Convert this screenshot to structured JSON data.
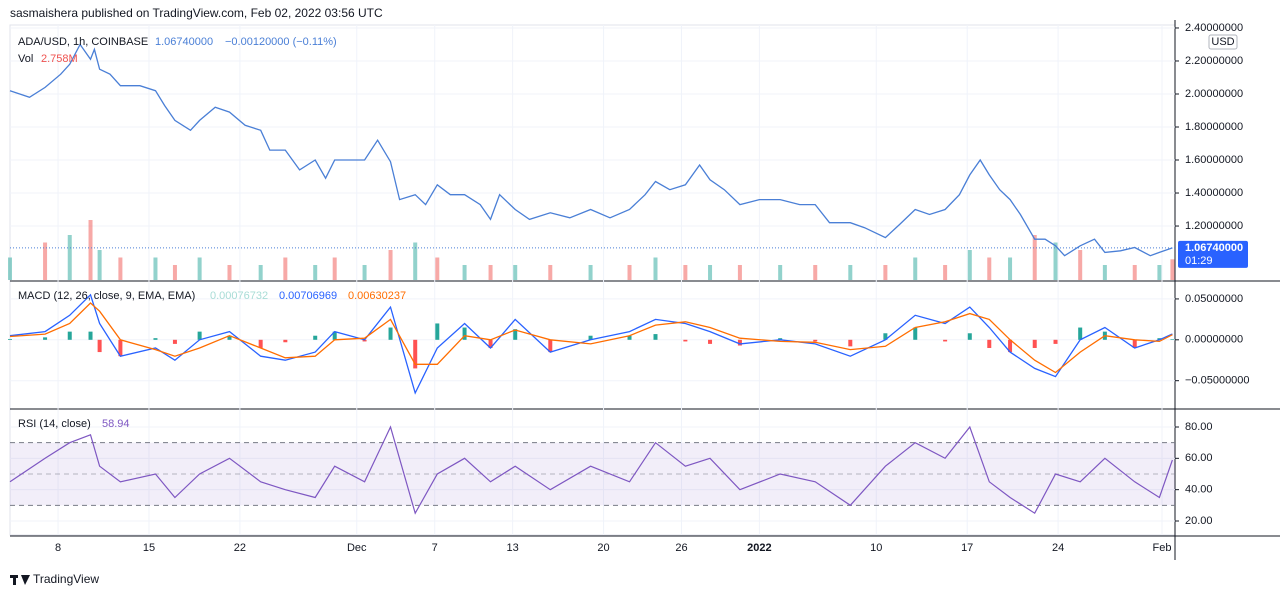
{
  "header": "sasmaishera published on TradingView.com, Feb 02, 2022 03:56 UTC",
  "footer": "TradingView",
  "chart_data": {
    "type": "line",
    "symbol": "ADA/USD, 1h, COINBASE",
    "last_price_label": "1.06740000",
    "change": "−0.00120000 (−0.11%)",
    "currency": "USD",
    "countdown": "01:29",
    "xlim": [
      -3.7,
      86
    ],
    "xticks": [
      {
        "value": 0,
        "label": "8"
      },
      {
        "value": 7,
        "label": "15"
      },
      {
        "value": 14,
        "label": "22"
      },
      {
        "value": 23,
        "label": "Dec"
      },
      {
        "value": 29,
        "label": "7"
      },
      {
        "value": 35,
        "label": "13"
      },
      {
        "value": 42,
        "label": "20"
      },
      {
        "value": 48,
        "label": "26"
      },
      {
        "value": 54,
        "label": "2022"
      },
      {
        "value": 63,
        "label": "10"
      },
      {
        "value": 70,
        "label": "17"
      },
      {
        "value": 77,
        "label": "24"
      },
      {
        "value": 85,
        "label": "Feb"
      }
    ],
    "price": {
      "color": "#4a7fd6",
      "ylim": [
        0.873,
        2.418
      ],
      "yticks": [
        {
          "value": 1.2,
          "label": "1.20000000"
        },
        {
          "value": 1.4,
          "label": "1.40000000"
        },
        {
          "value": 1.6,
          "label": "1.60000000"
        },
        {
          "value": 1.8,
          "label": "1.80000000"
        },
        {
          "value": 2.0,
          "label": "2.00000000"
        },
        {
          "value": 2.2,
          "label": "2.20000000"
        },
        {
          "value": 2.4,
          "label": "2.40000000"
        }
      ],
      "x": [
        -3.7,
        -2.2,
        -1.0,
        0.2,
        0.9,
        1.7,
        2.5,
        2.8,
        3.2,
        4.0,
        4.8,
        6.3,
        7.5,
        8.2,
        9.0,
        10.2,
        10.9,
        12.1,
        13.2,
        14.4,
        15.6,
        16.3,
        17.5,
        18.6,
        19.8,
        20.6,
        21.3,
        22.5,
        23.6,
        24.6,
        25.6,
        26.3,
        27.5,
        28.3,
        29.2,
        30.2,
        31.3,
        32.5,
        33.3,
        34.0,
        35.2,
        36.3,
        37.9,
        39.4,
        41.0,
        42.5,
        44.0,
        45.2,
        46.0,
        47.1,
        48.3,
        49.4,
        50.2,
        51.3,
        52.5,
        54.0,
        55.6,
        57.1,
        58.3,
        59.4,
        61.0,
        62.1,
        63.7,
        64.8,
        66.0,
        67.1,
        68.3,
        69.4,
        70.2,
        71.0,
        71.7,
        72.5,
        73.3,
        74.1,
        75.2,
        76.0,
        76.8,
        77.5,
        78.7,
        79.8,
        80.6,
        81.8,
        82.9,
        84.1,
        84.8,
        85.8
      ],
      "values": [
        2.02,
        1.98,
        2.04,
        2.12,
        2.18,
        2.3,
        2.21,
        2.27,
        2.15,
        2.12,
        2.05,
        2.05,
        2.02,
        1.93,
        1.84,
        1.78,
        1.84,
        1.92,
        1.89,
        1.81,
        1.78,
        1.66,
        1.66,
        1.54,
        1.6,
        1.49,
        1.6,
        1.6,
        1.6,
        1.72,
        1.59,
        1.36,
        1.39,
        1.33,
        1.45,
        1.39,
        1.39,
        1.33,
        1.24,
        1.39,
        1.3,
        1.24,
        1.28,
        1.25,
        1.3,
        1.25,
        1.3,
        1.39,
        1.47,
        1.42,
        1.45,
        1.57,
        1.48,
        1.42,
        1.33,
        1.36,
        1.36,
        1.33,
        1.33,
        1.22,
        1.22,
        1.19,
        1.13,
        1.21,
        1.3,
        1.27,
        1.3,
        1.39,
        1.51,
        1.6,
        1.51,
        1.42,
        1.36,
        1.27,
        1.12,
        1.12,
        1.08,
        1.02,
        1.08,
        1.12,
        1.04,
        1.05,
        1.07,
        1.02,
        1.04,
        1.0674
      ]
    },
    "indicator_x": [
      -3.7,
      -1.0,
      0.9,
      2.5,
      3.2,
      4.8,
      7.5,
      9.0,
      10.9,
      13.2,
      15.6,
      17.5,
      19.8,
      21.3,
      23.6,
      25.6,
      27.5,
      29.2,
      31.3,
      33.3,
      35.2,
      37.9,
      41.0,
      44.0,
      46.0,
      48.3,
      50.2,
      52.5,
      55.6,
      58.3,
      61.0,
      63.7,
      66.0,
      68.3,
      70.2,
      71.7,
      73.3,
      75.2,
      76.8,
      78.7,
      80.6,
      82.9,
      84.8,
      85.8
    ],
    "volume": {
      "name": "Vol",
      "value_label": "2.758M",
      "colors": [
        "#26a69a",
        "#ef5350"
      ],
      "values": [
        3,
        5,
        6,
        8,
        4,
        3,
        3,
        2,
        3,
        2,
        2,
        3,
        2,
        3,
        2,
        4,
        5,
        3,
        2,
        2,
        2,
        2,
        2,
        2,
        3,
        2,
        2,
        2,
        2,
        2,
        2,
        2,
        3,
        2,
        4,
        3,
        3,
        6,
        5,
        4,
        2,
        2,
        2,
        2.758
      ]
    },
    "macd": {
      "name": "MACD (12, 26, close, 9, EMA, EMA)",
      "ylim": [
        -0.0834,
        0.0707
      ],
      "yticks": [
        {
          "value": -0.05,
          "label": "−0.05000000"
        },
        {
          "value": 0,
          "label": "0.00000000"
        },
        {
          "value": 0.05,
          "label": "0.05000000"
        }
      ],
      "histogram": {
        "colors": [
          "#26a69a",
          "#ff5252"
        ],
        "legend_color": "#a8dcd6",
        "values": [
          0.001,
          0.003,
          0.01,
          0.01,
          -0.015,
          -0.02,
          0.002,
          -0.005,
          0.01,
          0.005,
          -0.01,
          -0.003,
          0.005,
          0.01,
          -0.002,
          0.015,
          -0.035,
          0.02,
          0.015,
          -0.01,
          0.013,
          -0.015,
          0.005,
          0.005,
          0.007,
          -0.002,
          -0.005,
          -0.007,
          0.002,
          -0.002,
          -0.008,
          0.008,
          0.015,
          -0.002,
          0.008,
          -0.01,
          -0.015,
          -0.01,
          -0.005,
          0.015,
          0.01,
          -0.01,
          0.002,
          0.00076732
        ]
      },
      "series": [
        {
          "color": "#2962ff",
          "values": [
            0.005,
            0.01,
            0.03,
            0.055,
            0.02,
            -0.02,
            -0.01,
            -0.025,
            0.0,
            0.01,
            -0.02,
            -0.025,
            -0.015,
            0.01,
            0.0,
            0.04,
            -0.065,
            -0.01,
            0.02,
            -0.01,
            0.025,
            -0.015,
            0.0,
            0.01,
            0.025,
            0.02,
            0.01,
            -0.005,
            0.0,
            -0.005,
            -0.02,
            0.0,
            0.03,
            0.02,
            0.04,
            0.015,
            -0.015,
            -0.035,
            -0.045,
            0.0,
            0.015,
            -0.01,
            0.0,
            0.00706969
          ]
        },
        {
          "color": "#ff6d00",
          "values": [
            0.004,
            0.007,
            0.02,
            0.045,
            0.035,
            0.0,
            -0.012,
            -0.02,
            -0.01,
            0.005,
            -0.01,
            -0.022,
            -0.02,
            0.0,
            0.002,
            0.025,
            -0.03,
            -0.03,
            0.005,
            0.0,
            0.012,
            0.0,
            -0.005,
            0.005,
            0.018,
            0.022,
            0.015,
            0.002,
            -0.002,
            -0.003,
            -0.012,
            -0.008,
            0.015,
            0.022,
            0.032,
            0.025,
            0.0,
            -0.025,
            -0.04,
            -0.015,
            0.005,
            0.0,
            -0.002,
            0.00630237
          ]
        }
      ]
    },
    "rsi": {
      "name": "RSI (14, close)",
      "color": "#7e57c2",
      "ylim": [
        11.06,
        90.85
      ],
      "yticks": [
        {
          "value": 20,
          "label": "20.00"
        },
        {
          "value": 40,
          "label": "40.00"
        },
        {
          "value": 60,
          "label": "60.00"
        },
        {
          "value": 80,
          "label": "80.00"
        }
      ],
      "band": [
        30,
        70
      ],
      "midline": 50,
      "values": [
        45,
        60,
        70,
        75,
        55,
        45,
        50,
        35,
        50,
        60,
        45,
        40,
        35,
        55,
        45,
        80,
        25,
        50,
        60,
        45,
        55,
        40,
        55,
        45,
        70,
        55,
        60,
        40,
        50,
        45,
        30,
        55,
        70,
        60,
        80,
        45,
        35,
        25,
        50,
        45,
        60,
        45,
        35,
        58.94
      ]
    }
  }
}
